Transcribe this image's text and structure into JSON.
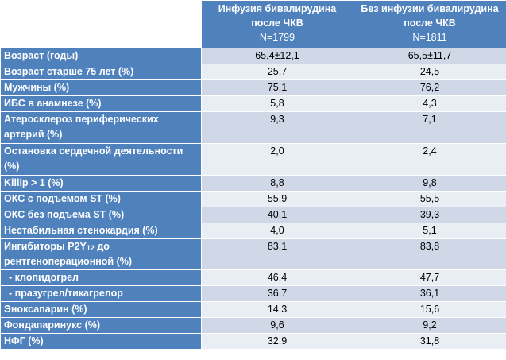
{
  "header": {
    "col1_title": "Инфузия бивалирудина после ЧКВ",
    "col1_n": "N=1799",
    "col2_title": "Без инфузии бивалирудина после ЧКВ",
    "col2_n": "N=1811"
  },
  "rows": [
    {
      "label": "Возраст (годы)",
      "v1": "65,4±12,1",
      "v2": "65,5±11,7"
    },
    {
      "label": "Возраст старше 75 лет (%)",
      "v1": "25,7",
      "v2": "24,5"
    },
    {
      "label": "Мужчины (%)",
      "v1": "75,1",
      "v2": "76,2"
    },
    {
      "label": "ИБС в анамнезе (%)",
      "v1": "5,8",
      "v2": "4,3"
    },
    {
      "label": "Атеросклероз периферических артерий (%)",
      "v1": "9,3",
      "v2": "7,1"
    },
    {
      "label": "Остановка сердечной деятельности (%)",
      "v1": "2,0",
      "v2": "2,4"
    },
    {
      "label": "Killip > 1 (%)",
      "v1": "8,8",
      "v2": "9,8"
    },
    {
      "label": "ОКС с подъемом ST (%)",
      "v1": "55,9",
      "v2": "55,5"
    },
    {
      "label": "ОКС без подъема ST (%)",
      "v1": "40,1",
      "v2": "39,3"
    },
    {
      "label": "Нестабильная стенокардия (%)",
      "v1": "4,0",
      "v2": "5,1"
    },
    {
      "label_a": "Ингибиторы P2Y",
      "label_sub": "12",
      "label_b": " до рентгеноперационной (%)",
      "v1": "83,1",
      "v2": "83,8"
    },
    {
      "label": "- клопидогрел",
      "v1": "46,4",
      "v2": "47,7"
    },
    {
      "label": "- празугрел/тикагрелор",
      "v1": "36,7",
      "v2": "36,1"
    },
    {
      "label": "Эноксапарин (%)",
      "v1": "14,3",
      "v2": "15,6"
    },
    {
      "label": "Фондапаринукс (%)",
      "v1": "9,6",
      "v2": "9,2"
    },
    {
      "label": "НФГ (%)",
      "v1": "32,9",
      "v2": "31,8"
    }
  ]
}
